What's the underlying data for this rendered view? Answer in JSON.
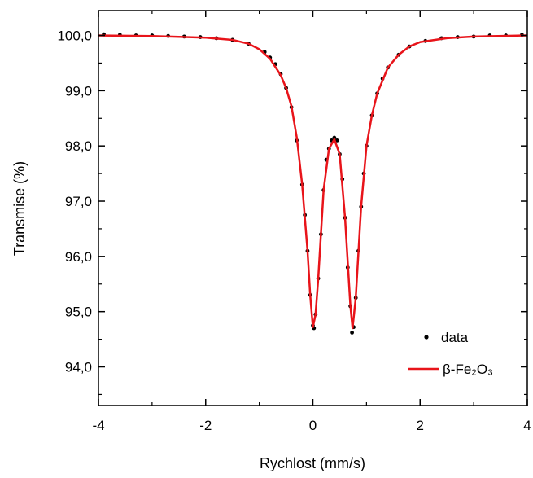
{
  "chart_data": {
    "type": "scatter",
    "title": "",
    "xlabel": "Rychlost (mm/s)",
    "ylabel": "Transmise (%)",
    "xlim": [
      -4,
      4
    ],
    "ylim": [
      93.3,
      100.45
    ],
    "x_ticks": [
      -4,
      -2,
      0,
      2,
      4
    ],
    "x_tick_labels": [
      "-4",
      "-2",
      "0",
      "2",
      "4"
    ],
    "y_ticks": [
      94,
      95,
      96,
      97,
      98,
      99,
      100
    ],
    "y_tick_labels": [
      "94,0",
      "95,0",
      "96,0",
      "97,0",
      "98,0",
      "99,0",
      "100,0"
    ],
    "grid": false,
    "legend_position": "bottom-right",
    "series": [
      {
        "name": "data",
        "kind": "scatter",
        "color": "#000000",
        "points": [
          [
            -3.9,
            100.02
          ],
          [
            -3.6,
            100.01
          ],
          [
            -3.3,
            100.0
          ],
          [
            -3.0,
            100.0
          ],
          [
            -2.7,
            99.99
          ],
          [
            -2.4,
            99.98
          ],
          [
            -2.1,
            99.97
          ],
          [
            -1.8,
            99.95
          ],
          [
            -1.5,
            99.92
          ],
          [
            -1.2,
            99.85
          ],
          [
            -0.9,
            99.7
          ],
          [
            -0.8,
            99.6
          ],
          [
            -0.7,
            99.48
          ],
          [
            -0.6,
            99.3
          ],
          [
            -0.5,
            99.05
          ],
          [
            -0.4,
            98.7
          ],
          [
            -0.3,
            98.1
          ],
          [
            -0.2,
            97.3
          ],
          [
            -0.15,
            96.75
          ],
          [
            -0.1,
            96.1
          ],
          [
            -0.05,
            95.3
          ],
          [
            0.0,
            94.75
          ],
          [
            0.02,
            94.7
          ],
          [
            0.05,
            94.95
          ],
          [
            0.1,
            95.6
          ],
          [
            0.15,
            96.4
          ],
          [
            0.2,
            97.2
          ],
          [
            0.25,
            97.75
          ],
          [
            0.3,
            97.95
          ],
          [
            0.35,
            98.1
          ],
          [
            0.4,
            98.15
          ],
          [
            0.45,
            98.1
          ],
          [
            0.5,
            97.85
          ],
          [
            0.55,
            97.4
          ],
          [
            0.6,
            96.7
          ],
          [
            0.65,
            95.8
          ],
          [
            0.7,
            95.1
          ],
          [
            0.73,
            94.62
          ],
          [
            0.76,
            94.72
          ],
          [
            0.8,
            95.25
          ],
          [
            0.85,
            96.1
          ],
          [
            0.9,
            96.9
          ],
          [
            0.95,
            97.5
          ],
          [
            1.0,
            98.0
          ],
          [
            1.1,
            98.55
          ],
          [
            1.2,
            98.95
          ],
          [
            1.3,
            99.22
          ],
          [
            1.4,
            99.42
          ],
          [
            1.6,
            99.65
          ],
          [
            1.8,
            99.8
          ],
          [
            2.1,
            99.9
          ],
          [
            2.4,
            99.95
          ],
          [
            2.7,
            99.97
          ],
          [
            3.0,
            99.98
          ],
          [
            3.3,
            100.0
          ],
          [
            3.6,
            100.0
          ],
          [
            3.9,
            100.01
          ]
        ]
      },
      {
        "name": "β-Fe₂O₃",
        "kind": "line",
        "color": "#e8141a",
        "points": [
          [
            -4.0,
            100.0
          ],
          [
            -3.0,
            99.99
          ],
          [
            -2.0,
            99.96
          ],
          [
            -1.5,
            99.92
          ],
          [
            -1.2,
            99.85
          ],
          [
            -1.0,
            99.75
          ],
          [
            -0.8,
            99.58
          ],
          [
            -0.6,
            99.28
          ],
          [
            -0.5,
            99.05
          ],
          [
            -0.4,
            98.72
          ],
          [
            -0.3,
            98.15
          ],
          [
            -0.2,
            97.3
          ],
          [
            -0.1,
            96.1
          ],
          [
            -0.05,
            95.3
          ],
          [
            0.0,
            94.72
          ],
          [
            0.05,
            94.95
          ],
          [
            0.1,
            95.6
          ],
          [
            0.2,
            97.2
          ],
          [
            0.3,
            97.95
          ],
          [
            0.4,
            98.12
          ],
          [
            0.5,
            97.85
          ],
          [
            0.6,
            96.7
          ],
          [
            0.7,
            95.1
          ],
          [
            0.74,
            94.7
          ],
          [
            0.8,
            95.25
          ],
          [
            0.9,
            96.9
          ],
          [
            1.0,
            98.0
          ],
          [
            1.1,
            98.55
          ],
          [
            1.2,
            98.95
          ],
          [
            1.4,
            99.42
          ],
          [
            1.6,
            99.65
          ],
          [
            1.8,
            99.8
          ],
          [
            2.0,
            99.88
          ],
          [
            2.5,
            99.95
          ],
          [
            3.0,
            99.98
          ],
          [
            4.0,
            100.0
          ]
        ]
      }
    ]
  }
}
